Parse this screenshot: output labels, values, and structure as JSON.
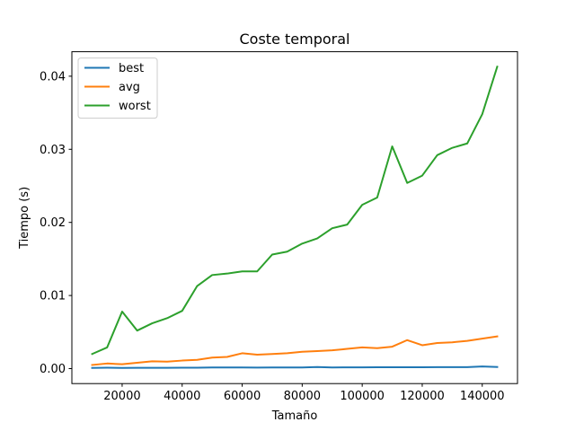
{
  "chart_data": {
    "type": "line",
    "title": "Coste temporal",
    "xlabel": "Tamaño",
    "ylabel": "Tiempo (s)",
    "xlim": [
      3250,
      151750
    ],
    "ylim": [
      -0.00205,
      0.04335
    ],
    "xticks": [
      20000,
      40000,
      60000,
      80000,
      100000,
      120000,
      140000
    ],
    "xtick_labels": [
      "20000",
      "40000",
      "60000",
      "80000",
      "100000",
      "120000",
      "140000"
    ],
    "yticks": [
      0.0,
      0.01,
      0.02,
      0.03,
      0.04
    ],
    "ytick_labels": [
      "0.00",
      "0.01",
      "0.02",
      "0.03",
      "0.04"
    ],
    "grid": false,
    "legend_position": "upper-left",
    "x": [
      10000,
      15000,
      20000,
      25000,
      30000,
      35000,
      40000,
      45000,
      50000,
      55000,
      60000,
      65000,
      70000,
      75000,
      80000,
      85000,
      90000,
      95000,
      100000,
      105000,
      110000,
      115000,
      120000,
      125000,
      130000,
      135000,
      140000,
      145000
    ],
    "series": [
      {
        "name": "best",
        "color": "#1f77b4",
        "values": [
          0.0001,
          0.00012,
          0.0001,
          0.00011,
          0.00011,
          0.00011,
          0.00012,
          0.00013,
          0.00015,
          0.00015,
          0.00015,
          0.00014,
          0.00015,
          0.00015,
          0.00015,
          0.00021,
          0.00016,
          0.00017,
          0.00017,
          0.00018,
          0.00018,
          0.00018,
          0.00019,
          0.0002,
          0.0002,
          0.0002,
          0.00029,
          0.00022
        ]
      },
      {
        "name": "avg",
        "color": "#ff7f0e",
        "values": [
          0.0005,
          0.0007,
          0.0006,
          0.0008,
          0.001,
          0.00095,
          0.0011,
          0.0012,
          0.0015,
          0.0016,
          0.0021,
          0.0019,
          0.002,
          0.0021,
          0.0023,
          0.0024,
          0.0025,
          0.0027,
          0.0029,
          0.0028,
          0.003,
          0.0039,
          0.0032,
          0.0035,
          0.0036,
          0.0038,
          0.0041,
          0.0044
        ]
      },
      {
        "name": "worst",
        "color": "#2ca02c",
        "values": [
          0.002,
          0.0029,
          0.0078,
          0.0052,
          0.0062,
          0.0069,
          0.0079,
          0.0113,
          0.0128,
          0.013,
          0.0133,
          0.0133,
          0.0156,
          0.016,
          0.0171,
          0.0178,
          0.0192,
          0.0197,
          0.0224,
          0.0234,
          0.0304,
          0.0254,
          0.0264,
          0.0292,
          0.0302,
          0.0308,
          0.0348,
          0.0413
        ]
      }
    ]
  }
}
